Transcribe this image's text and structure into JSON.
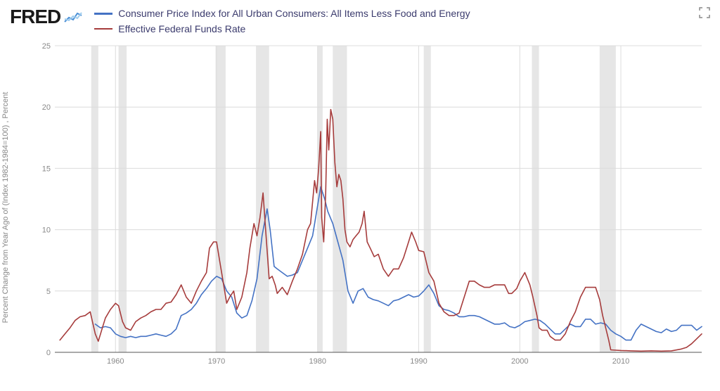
{
  "logo": {
    "text": "FRED"
  },
  "legend": {
    "series": [
      {
        "label": "Consumer Price Index for All Urban Consumers: All Items Less Food and Energy",
        "color": "#4472c4"
      },
      {
        "label": "Effective Federal Funds Rate",
        "color": "#a63c3c"
      }
    ]
  },
  "chart": {
    "type": "line",
    "background_color": "#ffffff",
    "grid_color": "#dcdcdc",
    "axis_color": "#555555",
    "text_color": "#888888",
    "label_fontsize": 11,
    "y_axis_label": "Percent Change from Year Ago of (Index 1982-1984=100) , Percent",
    "xlim": [
      1954,
      2018
    ],
    "ylim": [
      0,
      25
    ],
    "ytick_step": 5,
    "xtick_step": 10,
    "xtick_start": 1960,
    "line_width": 1.6,
    "recession_color": "#d8d8d8",
    "recessions": [
      [
        1957.6,
        1958.3
      ],
      [
        1960.3,
        1961.1
      ],
      [
        1969.9,
        1970.9
      ],
      [
        1973.9,
        1975.2
      ],
      [
        1980.0,
        1980.5
      ],
      [
        1981.5,
        1982.9
      ],
      [
        1990.5,
        1991.2
      ],
      [
        2001.2,
        2001.9
      ],
      [
        2007.9,
        2009.5
      ]
    ],
    "series": [
      {
        "name": "cpi_core",
        "color": "#4472c4",
        "data": [
          [
            1958.0,
            2.3
          ],
          [
            1958.5,
            2.0
          ],
          [
            1959.0,
            2.1
          ],
          [
            1959.5,
            2.0
          ],
          [
            1960.0,
            1.5
          ],
          [
            1960.5,
            1.3
          ],
          [
            1961.0,
            1.2
          ],
          [
            1961.5,
            1.3
          ],
          [
            1962.0,
            1.2
          ],
          [
            1962.5,
            1.3
          ],
          [
            1963.0,
            1.3
          ],
          [
            1963.5,
            1.4
          ],
          [
            1964.0,
            1.5
          ],
          [
            1964.5,
            1.4
          ],
          [
            1965.0,
            1.3
          ],
          [
            1965.5,
            1.5
          ],
          [
            1966.0,
            1.9
          ],
          [
            1966.5,
            3.0
          ],
          [
            1967.0,
            3.2
          ],
          [
            1967.5,
            3.5
          ],
          [
            1968.0,
            4.0
          ],
          [
            1968.5,
            4.7
          ],
          [
            1969.0,
            5.2
          ],
          [
            1969.5,
            5.8
          ],
          [
            1970.0,
            6.2
          ],
          [
            1970.5,
            6.0
          ],
          [
            1971.0,
            5.0
          ],
          [
            1971.5,
            4.5
          ],
          [
            1972.0,
            3.2
          ],
          [
            1972.5,
            2.8
          ],
          [
            1973.0,
            3.0
          ],
          [
            1973.5,
            4.2
          ],
          [
            1974.0,
            6.0
          ],
          [
            1974.5,
            9.5
          ],
          [
            1975.0,
            11.7
          ],
          [
            1975.3,
            10.0
          ],
          [
            1975.7,
            7.0
          ],
          [
            1976.0,
            6.8
          ],
          [
            1976.5,
            6.5
          ],
          [
            1977.0,
            6.2
          ],
          [
            1977.5,
            6.3
          ],
          [
            1978.0,
            6.5
          ],
          [
            1978.5,
            7.5
          ],
          [
            1979.0,
            8.5
          ],
          [
            1979.5,
            9.5
          ],
          [
            1980.0,
            12.0
          ],
          [
            1980.3,
            13.5
          ],
          [
            1980.7,
            12.5
          ],
          [
            1981.0,
            11.5
          ],
          [
            1981.5,
            10.5
          ],
          [
            1982.0,
            9.0
          ],
          [
            1982.5,
            7.5
          ],
          [
            1983.0,
            5.0
          ],
          [
            1983.5,
            4.0
          ],
          [
            1984.0,
            5.0
          ],
          [
            1984.5,
            5.2
          ],
          [
            1985.0,
            4.5
          ],
          [
            1985.5,
            4.3
          ],
          [
            1986.0,
            4.2
          ],
          [
            1986.5,
            4.0
          ],
          [
            1987.0,
            3.8
          ],
          [
            1987.5,
            4.2
          ],
          [
            1988.0,
            4.3
          ],
          [
            1988.5,
            4.5
          ],
          [
            1989.0,
            4.7
          ],
          [
            1989.5,
            4.5
          ],
          [
            1990.0,
            4.6
          ],
          [
            1990.5,
            5.0
          ],
          [
            1991.0,
            5.5
          ],
          [
            1991.5,
            4.8
          ],
          [
            1992.0,
            3.8
          ],
          [
            1992.5,
            3.5
          ],
          [
            1993.0,
            3.4
          ],
          [
            1993.5,
            3.2
          ],
          [
            1994.0,
            2.9
          ],
          [
            1994.5,
            2.9
          ],
          [
            1995.0,
            3.0
          ],
          [
            1995.5,
            3.0
          ],
          [
            1996.0,
            2.9
          ],
          [
            1996.5,
            2.7
          ],
          [
            1997.0,
            2.5
          ],
          [
            1997.5,
            2.3
          ],
          [
            1998.0,
            2.3
          ],
          [
            1998.5,
            2.4
          ],
          [
            1999.0,
            2.1
          ],
          [
            1999.5,
            2.0
          ],
          [
            2000.0,
            2.2
          ],
          [
            2000.5,
            2.5
          ],
          [
            2001.0,
            2.6
          ],
          [
            2001.5,
            2.7
          ],
          [
            2002.0,
            2.6
          ],
          [
            2002.5,
            2.3
          ],
          [
            2003.0,
            1.9
          ],
          [
            2003.5,
            1.5
          ],
          [
            2004.0,
            1.5
          ],
          [
            2004.5,
            1.9
          ],
          [
            2005.0,
            2.3
          ],
          [
            2005.5,
            2.1
          ],
          [
            2006.0,
            2.1
          ],
          [
            2006.5,
            2.7
          ],
          [
            2007.0,
            2.7
          ],
          [
            2007.5,
            2.3
          ],
          [
            2008.0,
            2.4
          ],
          [
            2008.5,
            2.3
          ],
          [
            2009.0,
            1.8
          ],
          [
            2009.5,
            1.5
          ],
          [
            2010.0,
            1.3
          ],
          [
            2010.5,
            1.0
          ],
          [
            2011.0,
            1.0
          ],
          [
            2011.5,
            1.8
          ],
          [
            2012.0,
            2.3
          ],
          [
            2012.5,
            2.1
          ],
          [
            2013.0,
            1.9
          ],
          [
            2013.5,
            1.7
          ],
          [
            2014.0,
            1.6
          ],
          [
            2014.5,
            1.9
          ],
          [
            2015.0,
            1.7
          ],
          [
            2015.5,
            1.8
          ],
          [
            2016.0,
            2.2
          ],
          [
            2016.5,
            2.2
          ],
          [
            2017.0,
            2.2
          ],
          [
            2017.5,
            1.8
          ],
          [
            2018.0,
            2.1
          ]
        ]
      },
      {
        "name": "fed_funds",
        "color": "#a63c3c",
        "data": [
          [
            1954.5,
            1.0
          ],
          [
            1955.0,
            1.5
          ],
          [
            1955.5,
            2.0
          ],
          [
            1956.0,
            2.6
          ],
          [
            1956.5,
            2.9
          ],
          [
            1957.0,
            3.0
          ],
          [
            1957.5,
            3.3
          ],
          [
            1958.0,
            1.5
          ],
          [
            1958.3,
            0.9
          ],
          [
            1958.7,
            2.0
          ],
          [
            1959.0,
            2.8
          ],
          [
            1959.5,
            3.5
          ],
          [
            1960.0,
            4.0
          ],
          [
            1960.3,
            3.8
          ],
          [
            1960.7,
            2.5
          ],
          [
            1961.0,
            2.0
          ],
          [
            1961.5,
            1.8
          ],
          [
            1962.0,
            2.5
          ],
          [
            1962.5,
            2.8
          ],
          [
            1963.0,
            3.0
          ],
          [
            1963.5,
            3.3
          ],
          [
            1964.0,
            3.5
          ],
          [
            1964.5,
            3.5
          ],
          [
            1965.0,
            4.0
          ],
          [
            1965.5,
            4.1
          ],
          [
            1966.0,
            4.7
          ],
          [
            1966.5,
            5.5
          ],
          [
            1967.0,
            4.5
          ],
          [
            1967.5,
            4.0
          ],
          [
            1968.0,
            5.0
          ],
          [
            1968.5,
            5.8
          ],
          [
            1969.0,
            6.5
          ],
          [
            1969.3,
            8.5
          ],
          [
            1969.7,
            9.0
          ],
          [
            1970.0,
            9.0
          ],
          [
            1970.3,
            7.5
          ],
          [
            1970.7,
            5.5
          ],
          [
            1971.0,
            4.0
          ],
          [
            1971.3,
            4.5
          ],
          [
            1971.7,
            5.0
          ],
          [
            1972.0,
            3.5
          ],
          [
            1972.5,
            4.5
          ],
          [
            1973.0,
            6.5
          ],
          [
            1973.3,
            8.5
          ],
          [
            1973.7,
            10.5
          ],
          [
            1974.0,
            9.5
          ],
          [
            1974.3,
            11.0
          ],
          [
            1974.6,
            13.0
          ],
          [
            1974.9,
            9.5
          ],
          [
            1975.2,
            6.0
          ],
          [
            1975.5,
            6.2
          ],
          [
            1975.8,
            5.5
          ],
          [
            1976.0,
            4.8
          ],
          [
            1976.5,
            5.3
          ],
          [
            1977.0,
            4.7
          ],
          [
            1977.5,
            5.8
          ],
          [
            1978.0,
            6.8
          ],
          [
            1978.5,
            8.0
          ],
          [
            1979.0,
            10.0
          ],
          [
            1979.3,
            10.5
          ],
          [
            1979.7,
            14.0
          ],
          [
            1979.9,
            13.0
          ],
          [
            1980.1,
            15.0
          ],
          [
            1980.3,
            18.0
          ],
          [
            1980.4,
            11.0
          ],
          [
            1980.6,
            9.0
          ],
          [
            1980.8,
            13.0
          ],
          [
            1980.95,
            19.0
          ],
          [
            1981.1,
            16.5
          ],
          [
            1981.3,
            19.8
          ],
          [
            1981.5,
            19.0
          ],
          [
            1981.7,
            15.5
          ],
          [
            1981.9,
            13.5
          ],
          [
            1982.1,
            14.5
          ],
          [
            1982.3,
            14.0
          ],
          [
            1982.5,
            12.5
          ],
          [
            1982.7,
            10.0
          ],
          [
            1982.9,
            9.0
          ],
          [
            1983.2,
            8.6
          ],
          [
            1983.5,
            9.2
          ],
          [
            1983.8,
            9.5
          ],
          [
            1984.1,
            9.8
          ],
          [
            1984.4,
            10.5
          ],
          [
            1984.6,
            11.5
          ],
          [
            1984.9,
            9.0
          ],
          [
            1985.2,
            8.5
          ],
          [
            1985.6,
            7.8
          ],
          [
            1986.0,
            8.0
          ],
          [
            1986.5,
            6.8
          ],
          [
            1987.0,
            6.2
          ],
          [
            1987.5,
            6.8
          ],
          [
            1988.0,
            6.8
          ],
          [
            1988.5,
            7.7
          ],
          [
            1989.0,
            9.0
          ],
          [
            1989.3,
            9.8
          ],
          [
            1989.7,
            9.0
          ],
          [
            1990.0,
            8.3
          ],
          [
            1990.5,
            8.2
          ],
          [
            1991.0,
            6.5
          ],
          [
            1991.5,
            5.8
          ],
          [
            1992.0,
            4.0
          ],
          [
            1992.5,
            3.3
          ],
          [
            1993.0,
            3.0
          ],
          [
            1993.5,
            3.0
          ],
          [
            1994.0,
            3.2
          ],
          [
            1994.5,
            4.5
          ],
          [
            1995.0,
            5.8
          ],
          [
            1995.5,
            5.8
          ],
          [
            1996.0,
            5.5
          ],
          [
            1996.5,
            5.3
          ],
          [
            1997.0,
            5.3
          ],
          [
            1997.5,
            5.5
          ],
          [
            1998.0,
            5.5
          ],
          [
            1998.5,
            5.5
          ],
          [
            1998.9,
            4.8
          ],
          [
            1999.2,
            4.8
          ],
          [
            1999.7,
            5.2
          ],
          [
            2000.0,
            5.8
          ],
          [
            2000.5,
            6.5
          ],
          [
            2001.0,
            5.5
          ],
          [
            2001.3,
            4.5
          ],
          [
            2001.7,
            3.0
          ],
          [
            2001.9,
            2.0
          ],
          [
            2002.2,
            1.8
          ],
          [
            2002.7,
            1.8
          ],
          [
            2003.0,
            1.3
          ],
          [
            2003.5,
            1.0
          ],
          [
            2004.0,
            1.0
          ],
          [
            2004.5,
            1.5
          ],
          [
            2005.0,
            2.5
          ],
          [
            2005.5,
            3.3
          ],
          [
            2006.0,
            4.5
          ],
          [
            2006.5,
            5.3
          ],
          [
            2007.0,
            5.3
          ],
          [
            2007.5,
            5.3
          ],
          [
            2007.9,
            4.3
          ],
          [
            2008.2,
            3.0
          ],
          [
            2008.5,
            2.0
          ],
          [
            2008.8,
            1.0
          ],
          [
            2009.0,
            0.2
          ],
          [
            2010.0,
            0.15
          ],
          [
            2011.0,
            0.12
          ],
          [
            2012.0,
            0.1
          ],
          [
            2013.0,
            0.12
          ],
          [
            2014.0,
            0.1
          ],
          [
            2015.0,
            0.12
          ],
          [
            2015.9,
            0.25
          ],
          [
            2016.5,
            0.4
          ],
          [
            2017.0,
            0.7
          ],
          [
            2017.5,
            1.1
          ],
          [
            2018.0,
            1.5
          ]
        ]
      }
    ]
  }
}
